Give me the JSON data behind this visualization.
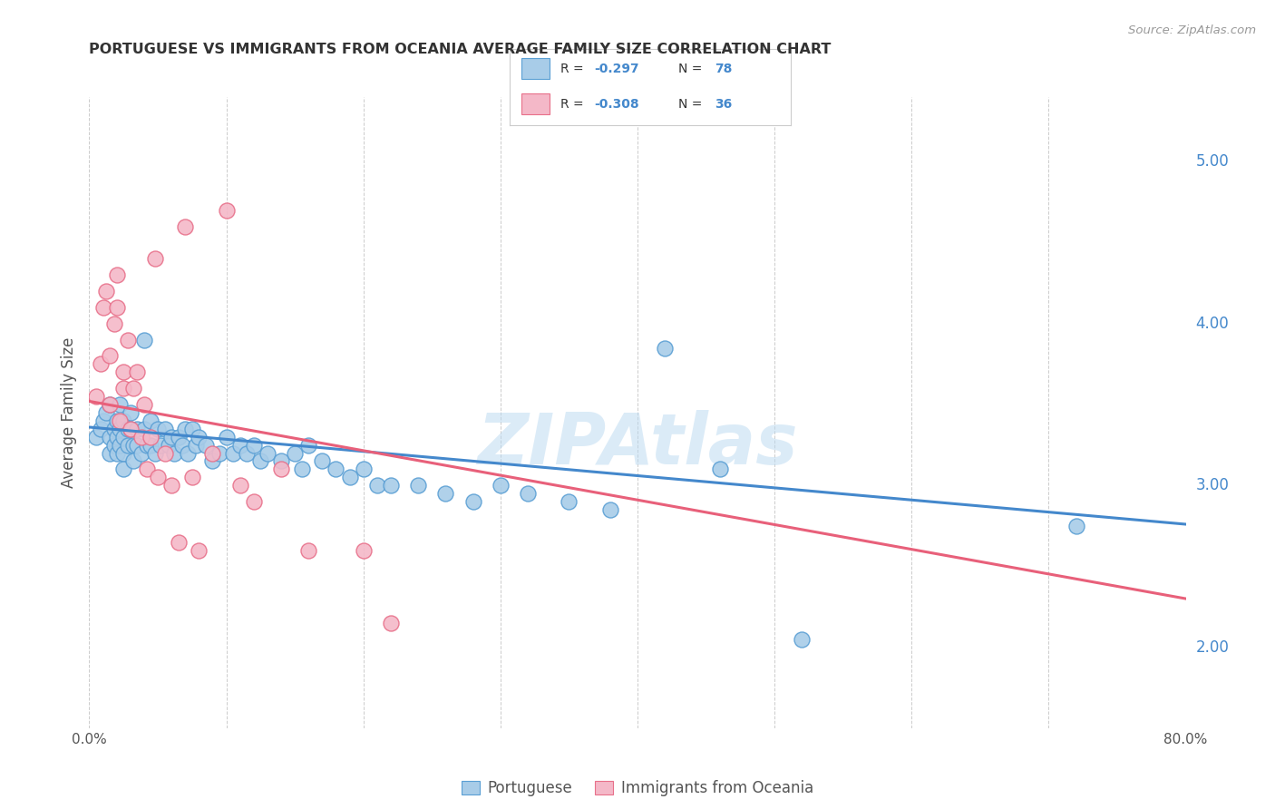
{
  "title": "PORTUGUESE VS IMMIGRANTS FROM OCEANIA AVERAGE FAMILY SIZE CORRELATION CHART",
  "source": "Source: ZipAtlas.com",
  "ylabel": "Average Family Size",
  "xlim": [
    0.0,
    0.8
  ],
  "ylim": [
    1.5,
    5.4
  ],
  "yticks": [
    2.0,
    3.0,
    4.0,
    5.0
  ],
  "xticks": [
    0.0,
    0.1,
    0.2,
    0.3,
    0.4,
    0.5,
    0.6,
    0.7,
    0.8
  ],
  "xtick_labels": [
    "0.0%",
    "",
    "",
    "",
    "",
    "",
    "",
    "",
    "80.0%"
  ],
  "background_color": "#ffffff",
  "blue_color": "#a8cce8",
  "pink_color": "#f4b8c8",
  "blue_edge": "#5a9fd4",
  "pink_edge": "#e8708a",
  "trend_blue": "#4488cc",
  "trend_pink": "#e8607a",
  "legend_label_blue": "Portuguese",
  "legend_label_pink": "Immigrants from Oceania",
  "watermark": "ZIPAtlas",
  "blue_points_x": [
    0.005,
    0.008,
    0.01,
    0.012,
    0.015,
    0.015,
    0.015,
    0.018,
    0.018,
    0.02,
    0.02,
    0.02,
    0.022,
    0.022,
    0.022,
    0.025,
    0.025,
    0.025,
    0.025,
    0.028,
    0.028,
    0.03,
    0.03,
    0.032,
    0.032,
    0.035,
    0.035,
    0.038,
    0.04,
    0.04,
    0.042,
    0.045,
    0.045,
    0.048,
    0.05,
    0.052,
    0.055,
    0.058,
    0.06,
    0.062,
    0.065,
    0.068,
    0.07,
    0.072,
    0.075,
    0.078,
    0.08,
    0.085,
    0.09,
    0.095,
    0.1,
    0.105,
    0.11,
    0.115,
    0.12,
    0.125,
    0.13,
    0.14,
    0.15,
    0.155,
    0.16,
    0.17,
    0.18,
    0.19,
    0.2,
    0.21,
    0.22,
    0.24,
    0.26,
    0.28,
    0.3,
    0.32,
    0.35,
    0.38,
    0.42,
    0.46,
    0.52,
    0.72
  ],
  "blue_points_y": [
    3.3,
    3.35,
    3.4,
    3.45,
    3.5,
    3.3,
    3.2,
    3.35,
    3.25,
    3.4,
    3.3,
    3.2,
    3.5,
    3.35,
    3.25,
    3.4,
    3.3,
    3.2,
    3.1,
    3.35,
    3.25,
    3.45,
    3.35,
    3.25,
    3.15,
    3.35,
    3.25,
    3.2,
    3.9,
    3.35,
    3.25,
    3.4,
    3.25,
    3.2,
    3.35,
    3.25,
    3.35,
    3.25,
    3.3,
    3.2,
    3.3,
    3.25,
    3.35,
    3.2,
    3.35,
    3.25,
    3.3,
    3.25,
    3.15,
    3.2,
    3.3,
    3.2,
    3.25,
    3.2,
    3.25,
    3.15,
    3.2,
    3.15,
    3.2,
    3.1,
    3.25,
    3.15,
    3.1,
    3.05,
    3.1,
    3.0,
    3.0,
    3.0,
    2.95,
    2.9,
    3.0,
    2.95,
    2.9,
    2.85,
    3.85,
    3.1,
    2.05,
    2.75
  ],
  "pink_points_x": [
    0.005,
    0.008,
    0.01,
    0.012,
    0.015,
    0.015,
    0.018,
    0.02,
    0.02,
    0.022,
    0.025,
    0.025,
    0.028,
    0.03,
    0.032,
    0.035,
    0.038,
    0.04,
    0.042,
    0.045,
    0.048,
    0.05,
    0.055,
    0.06,
    0.065,
    0.07,
    0.075,
    0.08,
    0.09,
    0.1,
    0.11,
    0.12,
    0.14,
    0.16,
    0.2,
    0.22
  ],
  "pink_points_y": [
    3.55,
    3.75,
    4.1,
    4.2,
    3.5,
    3.8,
    4.0,
    4.1,
    4.3,
    3.4,
    3.6,
    3.7,
    3.9,
    3.35,
    3.6,
    3.7,
    3.3,
    3.5,
    3.1,
    3.3,
    4.4,
    3.05,
    3.2,
    3.0,
    2.65,
    4.6,
    3.05,
    2.6,
    3.2,
    4.7,
    3.0,
    2.9,
    3.1,
    2.6,
    2.6,
    2.15
  ]
}
